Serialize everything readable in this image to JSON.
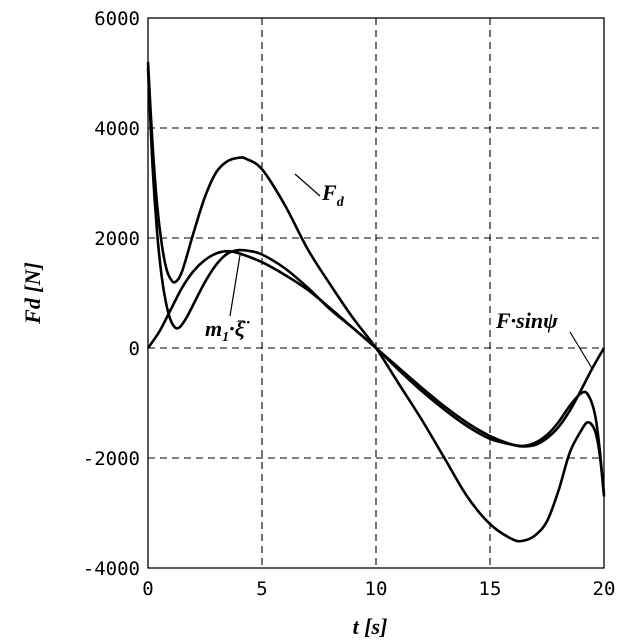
{
  "chart_data": {
    "type": "line",
    "xlabel": "t [s]",
    "ylabel": "Fd [N]",
    "xlim": [
      0,
      20
    ],
    "ylim": [
      -4000,
      6000
    ],
    "grid": true,
    "x_ticks": [
      "0",
      "5",
      "10",
      "15",
      "20"
    ],
    "y_ticks": [
      "6000",
      "4000",
      "2000",
      "0",
      "-2000",
      "-4000"
    ],
    "annotations": {
      "fd_main": "F",
      "fd_sub": "d",
      "m1_main": "m",
      "m1_sub": "1",
      "m1_dot": "·",
      "xi": "ξ̈",
      "fsin": "F·sinψ"
    },
    "series": [
      {
        "x": [
          0,
          0.2,
          0.4,
          0.6,
          0.8,
          1,
          1.2,
          1.5,
          2,
          2.5,
          3,
          3.5,
          4,
          4.3,
          5,
          6,
          7,
          8,
          9,
          10,
          11,
          12,
          13,
          14,
          15,
          16,
          16.5,
          17,
          17.5,
          18,
          18.5,
          19,
          19.3,
          19.6,
          19.8,
          20
        ],
        "values": [
          5200,
          3700,
          2600,
          1900,
          1450,
          1250,
          1200,
          1400,
          2100,
          2750,
          3200,
          3400,
          3460,
          3440,
          3250,
          2600,
          1800,
          1150,
          540,
          0,
          -650,
          -1300,
          -2000,
          -2700,
          -3200,
          -3480,
          -3500,
          -3400,
          -3150,
          -2600,
          -1900,
          -1500,
          -1350,
          -1500,
          -1900,
          -2650
        ]
      },
      {
        "x": [
          0,
          0.2,
          0.4,
          0.6,
          0.8,
          1,
          1.2,
          1.4,
          1.7,
          2,
          2.5,
          3,
          3.5,
          4,
          4.5,
          5,
          6,
          7,
          8,
          9,
          10,
          11,
          12,
          13,
          14,
          15,
          16,
          16.5,
          17,
          17.5,
          18,
          18.5,
          19,
          19.3,
          19.6,
          19.8,
          20
        ],
        "values": [
          5100,
          3300,
          2100,
          1300,
          800,
          500,
          370,
          380,
          560,
          800,
          1200,
          1520,
          1720,
          1780,
          1760,
          1700,
          1450,
          1100,
          700,
          360,
          0,
          -400,
          -780,
          -1120,
          -1420,
          -1650,
          -1760,
          -1780,
          -1720,
          -1580,
          -1350,
          -1050,
          -820,
          -850,
          -1200,
          -1800,
          -2700
        ]
      },
      {
        "x": [
          0,
          0.5,
          1,
          1.5,
          2,
          2.5,
          3,
          3.5,
          4,
          5,
          6,
          7,
          8,
          9,
          10,
          11,
          12,
          13,
          14,
          15,
          16,
          16.5,
          17,
          17.5,
          18,
          18.5,
          19,
          19.5,
          20
        ],
        "values": [
          0,
          300,
          700,
          1100,
          1400,
          1600,
          1720,
          1760,
          1720,
          1560,
          1330,
          1060,
          720,
          360,
          0,
          -360,
          -720,
          -1060,
          -1360,
          -1600,
          -1760,
          -1790,
          -1760,
          -1640,
          -1440,
          -1140,
          -760,
          -360,
          0
        ]
      }
    ]
  }
}
